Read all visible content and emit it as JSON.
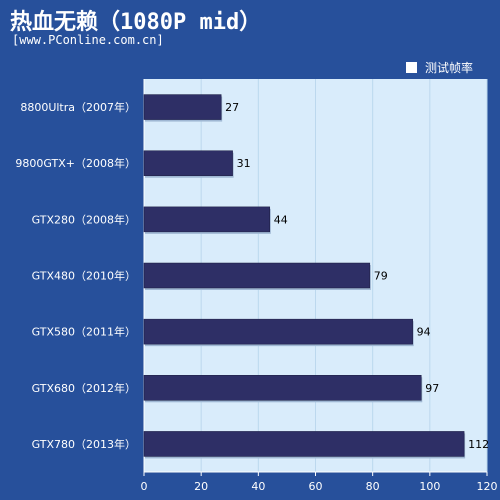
{
  "header": {
    "title": "热血无赖（1080P mid）",
    "source": "[www.PConline.com.cn]"
  },
  "colors": {
    "frame": "#27509b",
    "plot_bg": "#d9ecfb",
    "bar": "#2e2f66",
    "grid": "#bcd8ee"
  },
  "chart_data": {
    "type": "bar",
    "orientation": "horizontal",
    "title": "热血无赖（1080P mid）",
    "categories": [
      "8800Ultra（2007年）",
      "9800GTX+（2008年）",
      "GTX280（2008年）",
      "GTX480（2010年）",
      "GTX580（2011年）",
      "GTX680（2012年）",
      "GTX780（2013年）"
    ],
    "series": [
      {
        "name": "测试帧率",
        "values": [
          27,
          31,
          44,
          79,
          94,
          97,
          112
        ]
      }
    ],
    "xlim": [
      0,
      120
    ],
    "xticks": [
      0,
      20,
      40,
      60,
      80,
      100,
      120
    ],
    "grid": true,
    "legend": "top-right"
  }
}
